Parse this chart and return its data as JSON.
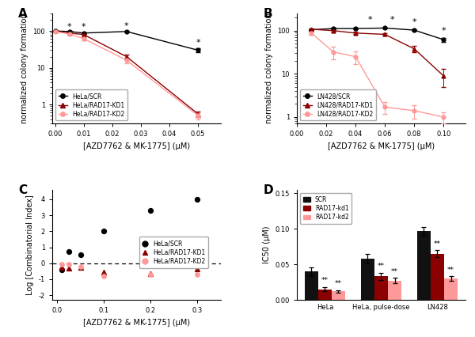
{
  "panel_A": {
    "label": "A",
    "xlabel": "[AZD7762 & MK-1775] (μM)",
    "ylabel": "normalized colony formation",
    "xdata": [
      0.0,
      0.005,
      0.01,
      0.025,
      0.05
    ],
    "SCR_y": [
      100,
      97,
      88,
      97,
      30
    ],
    "SCR_err": [
      2,
      2,
      4,
      2,
      4
    ],
    "KD1_y": [
      100,
      88,
      80,
      20,
      0.55
    ],
    "KD1_err": [
      2,
      4,
      5,
      3,
      0.1
    ],
    "KD2_y": [
      97,
      83,
      62,
      16,
      0.5
    ],
    "KD2_err": [
      2,
      4,
      5,
      3,
      0.1
    ],
    "stars": [
      [
        0.005,
        "*"
      ],
      [
        0.01,
        "*"
      ],
      [
        0.025,
        "*"
      ],
      [
        0.05,
        "*"
      ]
    ],
    "xlim": [
      -0.001,
      0.058
    ],
    "ylim_log": [
      0.3,
      300
    ],
    "xticks": [
      0.0,
      0.01,
      0.02,
      0.03,
      0.04,
      0.05
    ],
    "yticks_major": [
      1,
      10,
      100
    ],
    "legend_labels": [
      "HeLa/SCR",
      "HeLa/RAD17-KD1",
      "HeLa/RAD17-KD2"
    ],
    "colors": [
      "#000000",
      "#8B0000",
      "#FF9999"
    ]
  },
  "panel_B": {
    "label": "B",
    "xlabel": "[AZD7762 & MK-1775] (μM)",
    "ylabel": "normalized colony formation",
    "xdata": [
      0.01,
      0.025,
      0.04,
      0.06,
      0.08,
      0.1
    ],
    "SCR_y": [
      105,
      112,
      112,
      115,
      103,
      62
    ],
    "SCR_err": [
      3,
      3,
      3,
      4,
      4,
      7
    ],
    "KD1_y": [
      108,
      100,
      88,
      82,
      38,
      9
    ],
    "KD1_err": [
      3,
      5,
      5,
      5,
      7,
      4
    ],
    "KD2_y": [
      88,
      32,
      25,
      1.7,
      1.4,
      1.0
    ],
    "KD2_err": [
      8,
      10,
      8,
      0.5,
      0.5,
      0.3
    ],
    "stars": [
      [
        0.05,
        "*"
      ],
      [
        0.065,
        "*"
      ],
      [
        0.08,
        "*"
      ],
      [
        0.1,
        "*"
      ]
    ],
    "xlim": [
      0.0,
      0.115
    ],
    "ylim_log": [
      0.7,
      250
    ],
    "xticks": [
      0.0,
      0.02,
      0.04,
      0.06,
      0.08,
      0.1
    ],
    "yticks_major": [
      1,
      10,
      100
    ],
    "legend_labels": [
      "LN428/SCR",
      "LN428/RAD17-KD1",
      "LN428/RAD17-KD2"
    ],
    "colors": [
      "#000000",
      "#8B0000",
      "#FF9999"
    ]
  },
  "panel_C": {
    "label": "C",
    "xlabel": "[AZD7762 & MK-1775] (μM)",
    "ylabel": "Log [Combinatorial Index]",
    "xdata_SCR": [
      0.01,
      0.025,
      0.05,
      0.1,
      0.2,
      0.3
    ],
    "xdata_KD1": [
      0.01,
      0.025,
      0.05,
      0.1,
      0.2,
      0.3
    ],
    "xdata_KD2": [
      0.01,
      0.025,
      0.05,
      0.1,
      0.2,
      0.3
    ],
    "SCR_y": [
      -0.4,
      0.75,
      0.55,
      2.0,
      3.3,
      4.0
    ],
    "KD1_y": [
      -0.28,
      -0.32,
      -0.28,
      -0.55,
      -0.65,
      -0.38
    ],
    "KD2_y": [
      -0.05,
      -0.05,
      -0.2,
      -0.82,
      -0.72,
      -0.72
    ],
    "xlim": [
      -0.01,
      0.35
    ],
    "ylim": [
      -2.3,
      4.6
    ],
    "yticks": [
      -2,
      -1,
      0,
      1,
      2,
      3,
      4
    ],
    "xticks": [
      0.0,
      0.1,
      0.2,
      0.3
    ],
    "legend_labels": [
      "HeLa/SCR",
      "HeLa/RAD17-KD1",
      "HeLa/RAD17-KD2"
    ],
    "colors": [
      "#000000",
      "#8B0000",
      "#FF9999"
    ]
  },
  "panel_D": {
    "label": "D",
    "ylabel": "IC50 (μM)",
    "groups": [
      "HeLa",
      "HeLa, pulse-dose",
      "LN428"
    ],
    "legend_labels": [
      "SCR",
      "RAD17-kd1",
      "RAD17-kd2"
    ],
    "colors": [
      "#111111",
      "#8B0000",
      "#FF9999"
    ],
    "SCR_vals": [
      0.04,
      0.058,
      0.097
    ],
    "SCR_err": [
      0.006,
      0.007,
      0.006
    ],
    "KD1_vals": [
      0.015,
      0.033,
      0.065
    ],
    "KD1_err": [
      0.003,
      0.005,
      0.005
    ],
    "KD2_vals": [
      0.012,
      0.027,
      0.03
    ],
    "KD2_err": [
      0.002,
      0.004,
      0.003
    ],
    "ylim": [
      0,
      0.155
    ],
    "yticks": [
      0.0,
      0.05,
      0.1,
      0.15
    ]
  }
}
